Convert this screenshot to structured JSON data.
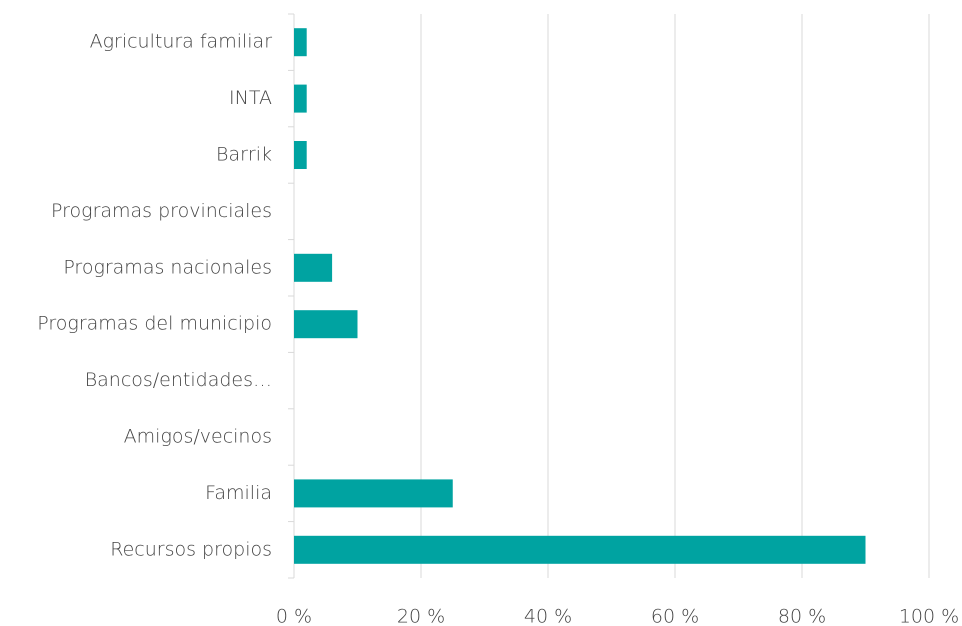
{
  "chart_data": {
    "type": "bar",
    "orientation": "horizontal",
    "categories": [
      "Agricultura familiar",
      "INTA",
      "Barrik",
      "Programas provinciales",
      "Programas nacionales",
      "Programas del municipio",
      "Bancos/entidades…",
      "Amigos/vecinos",
      "Familia",
      "Recursos propios"
    ],
    "values": [
      2,
      2,
      2,
      0,
      6,
      10,
      0,
      0,
      25,
      90
    ],
    "color": "#00a3a1",
    "xlim": [
      0,
      100
    ],
    "xticks": [
      {
        "value": 0,
        "label": "0 %"
      },
      {
        "value": 20,
        "label": "20 %"
      },
      {
        "value": 40,
        "label": "40 %"
      },
      {
        "value": 60,
        "label": "60 %"
      },
      {
        "value": 80,
        "label": "80 %"
      },
      {
        "value": 100,
        "label": "100 %"
      }
    ],
    "grid": true
  }
}
